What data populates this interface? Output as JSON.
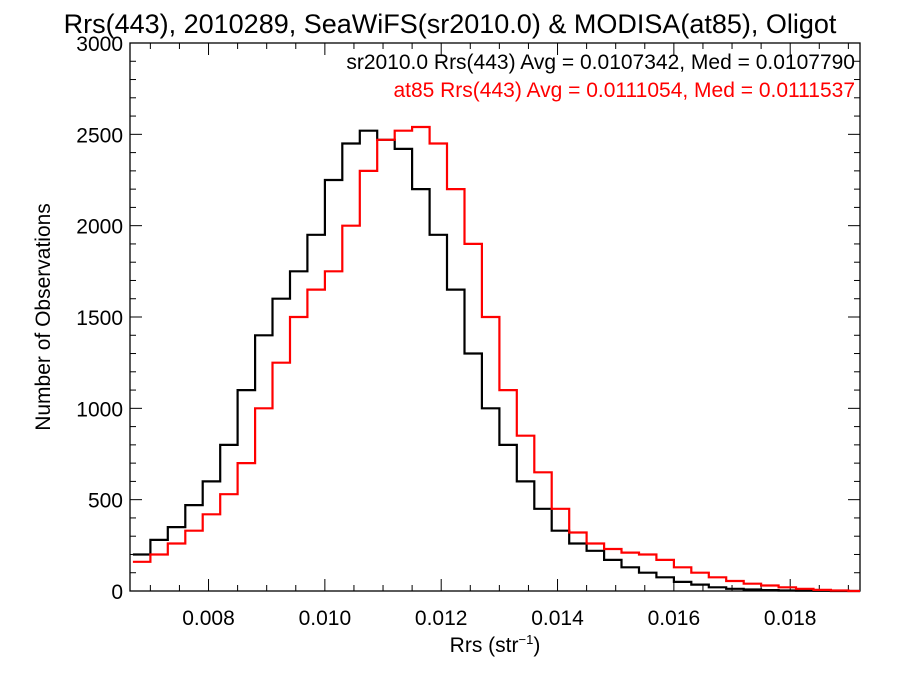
{
  "chart_data": {
    "type": "line",
    "title": "Rrs(443), 2010289, SeaWiFS(sr2010.0) & MODISA(at85), Oligot",
    "xlabel": "Rrs (str",
    "xlabel_exp": "−1",
    "xlabel_end": ")",
    "ylabel": "Number of Observations",
    "xlim": [
      0.00665,
      0.0192
    ],
    "ylim": [
      0,
      3000
    ],
    "xticks": [
      0.008,
      0.01,
      0.012,
      0.014,
      0.016,
      0.018
    ],
    "xtick_labels": [
      "0.008",
      "0.010",
      "0.012",
      "0.014",
      "0.016",
      "0.018"
    ],
    "yticks": [
      0,
      500,
      1000,
      1500,
      2000,
      2500,
      3000
    ],
    "ytick_labels": [
      "0",
      "500",
      "1000",
      "1500",
      "2000",
      "2500",
      "3000"
    ],
    "grid": false,
    "legend_position": "top-right",
    "x": [
      0.0067,
      0.007,
      0.0073,
      0.0076,
      0.0079,
      0.0082,
      0.0085,
      0.0088,
      0.0091,
      0.0094,
      0.0097,
      0.01,
      0.0103,
      0.0106,
      0.0109,
      0.0112,
      0.0115,
      0.0118,
      0.0121,
      0.0124,
      0.0127,
      0.013,
      0.0133,
      0.0136,
      0.0139,
      0.0142,
      0.0145,
      0.0148,
      0.0151,
      0.0154,
      0.0157,
      0.016,
      0.0163,
      0.0166,
      0.0169,
      0.0172,
      0.0175,
      0.0178,
      0.0181,
      0.0184,
      0.0187,
      0.019
    ],
    "series": [
      {
        "name": "sr2010.0 Rrs(443) Avg = 0.0107342, Med = 0.0107790",
        "color": "#000000",
        "values": [
          200,
          280,
          350,
          470,
          600,
          800,
          1100,
          1400,
          1600,
          1750,
          1950,
          2250,
          2450,
          2520,
          2470,
          2420,
          2200,
          1950,
          1650,
          1300,
          1000,
          800,
          600,
          450,
          330,
          260,
          220,
          170,
          130,
          100,
          75,
          50,
          35,
          20,
          12,
          8,
          5,
          3,
          2,
          1,
          0,
          0
        ]
      },
      {
        "name": "at85 Rrs(443) Avg = 0.0111054, Med = 0.0111537",
        "color": "#ff0000",
        "values": [
          160,
          200,
          260,
          330,
          420,
          530,
          700,
          1000,
          1250,
          1500,
          1650,
          1750,
          2000,
          2300,
          2470,
          2520,
          2540,
          2450,
          2200,
          1900,
          1500,
          1100,
          850,
          650,
          450,
          320,
          260,
          230,
          210,
          200,
          170,
          130,
          100,
          75,
          55,
          40,
          30,
          20,
          12,
          6,
          3,
          0
        ]
      }
    ]
  }
}
